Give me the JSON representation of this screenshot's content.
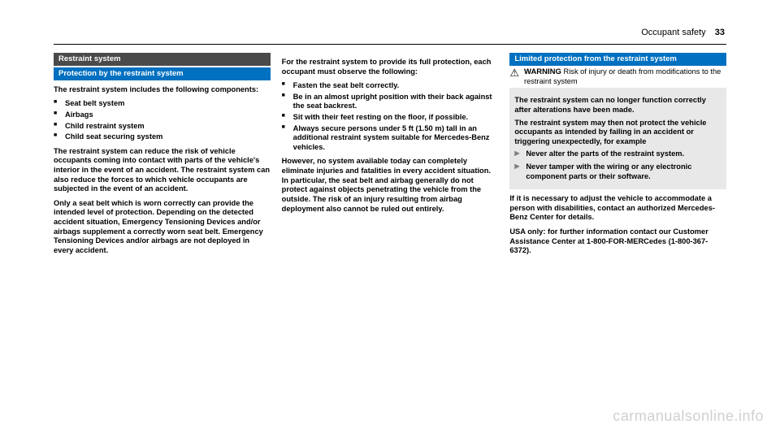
{
  "header": {
    "section": "Occupant safety",
    "pageNumber": "33"
  },
  "col1": {
    "bar1": "Restraint system",
    "bar2": "Protection by the restraint system",
    "p1": "The restraint system includes the following components:",
    "bullets": [
      "Seat belt system",
      "Airbags",
      "Child restraint system",
      "Child seat securing system"
    ],
    "p2": "The restraint system can reduce the risk of vehicle occupants coming into contact with parts of the vehicle's interior in the event of an accident. The restraint system can also reduce the forces to which vehicle occupants are subjected in the event of an accident.",
    "p3": "Only a seat belt which is worn correctly can provide the intended level of protection. Depending on the detected accident situation, Emergency Tensioning Devices and/or airbags supplement a correctly worn seat belt. Emergency Tensioning Devices and/or airbags are not deployed in every accident."
  },
  "col2": {
    "p1": "For the restraint system to provide its full protection, each occupant must observe the following:",
    "bullets": [
      "Fasten the seat belt correctly.",
      "Be in an almost upright position with their back against the seat backrest.",
      "Sit with their feet resting on the floor, if possible.",
      "Always secure persons under 5 ft (1.50 m) tall in an additional restraint system suitable for Mercedes-Benz vehicles."
    ],
    "p2": "However, no system available today can completely eliminate injuries and fatalities in every accident situation. In particular, the seat belt and airbag generally do not protect against objects penetrating the vehicle from the outside. The risk of an injury resulting from airbag deployment also cannot be ruled out entirely."
  },
  "col3": {
    "bar1": "Limited protection from the restraint system",
    "warnTitle": "WARNING",
    "warnText": "Risk of injury or death from modifications to the restraint system",
    "box": {
      "p1": "The restraint system can no longer function correctly after alterations have been made.",
      "p2": "The restraint system may then not protect the vehicle occupants as intended by failing in an accident or triggering unexpectedly, for example",
      "a1": "Never alter the parts of the restraint system.",
      "a2": "Never tamper with the wiring or any electronic component parts or their software."
    },
    "p1": "If it is necessary to adjust the vehicle to accommodate a person with disabilities, contact an authorized Mercedes-Benz Center for details.",
    "p2": "USA only: for further information contact our Customer Assistance Center at 1-800-FOR-MERCedes (1-800-367-6372)."
  },
  "watermark": "carmanualsonline.info",
  "colors": {
    "darkBar": "#4a4a4a",
    "blueBar": "#0070c0",
    "greyBox": "#e8e8e8",
    "watermark": "#d0d0d0"
  }
}
